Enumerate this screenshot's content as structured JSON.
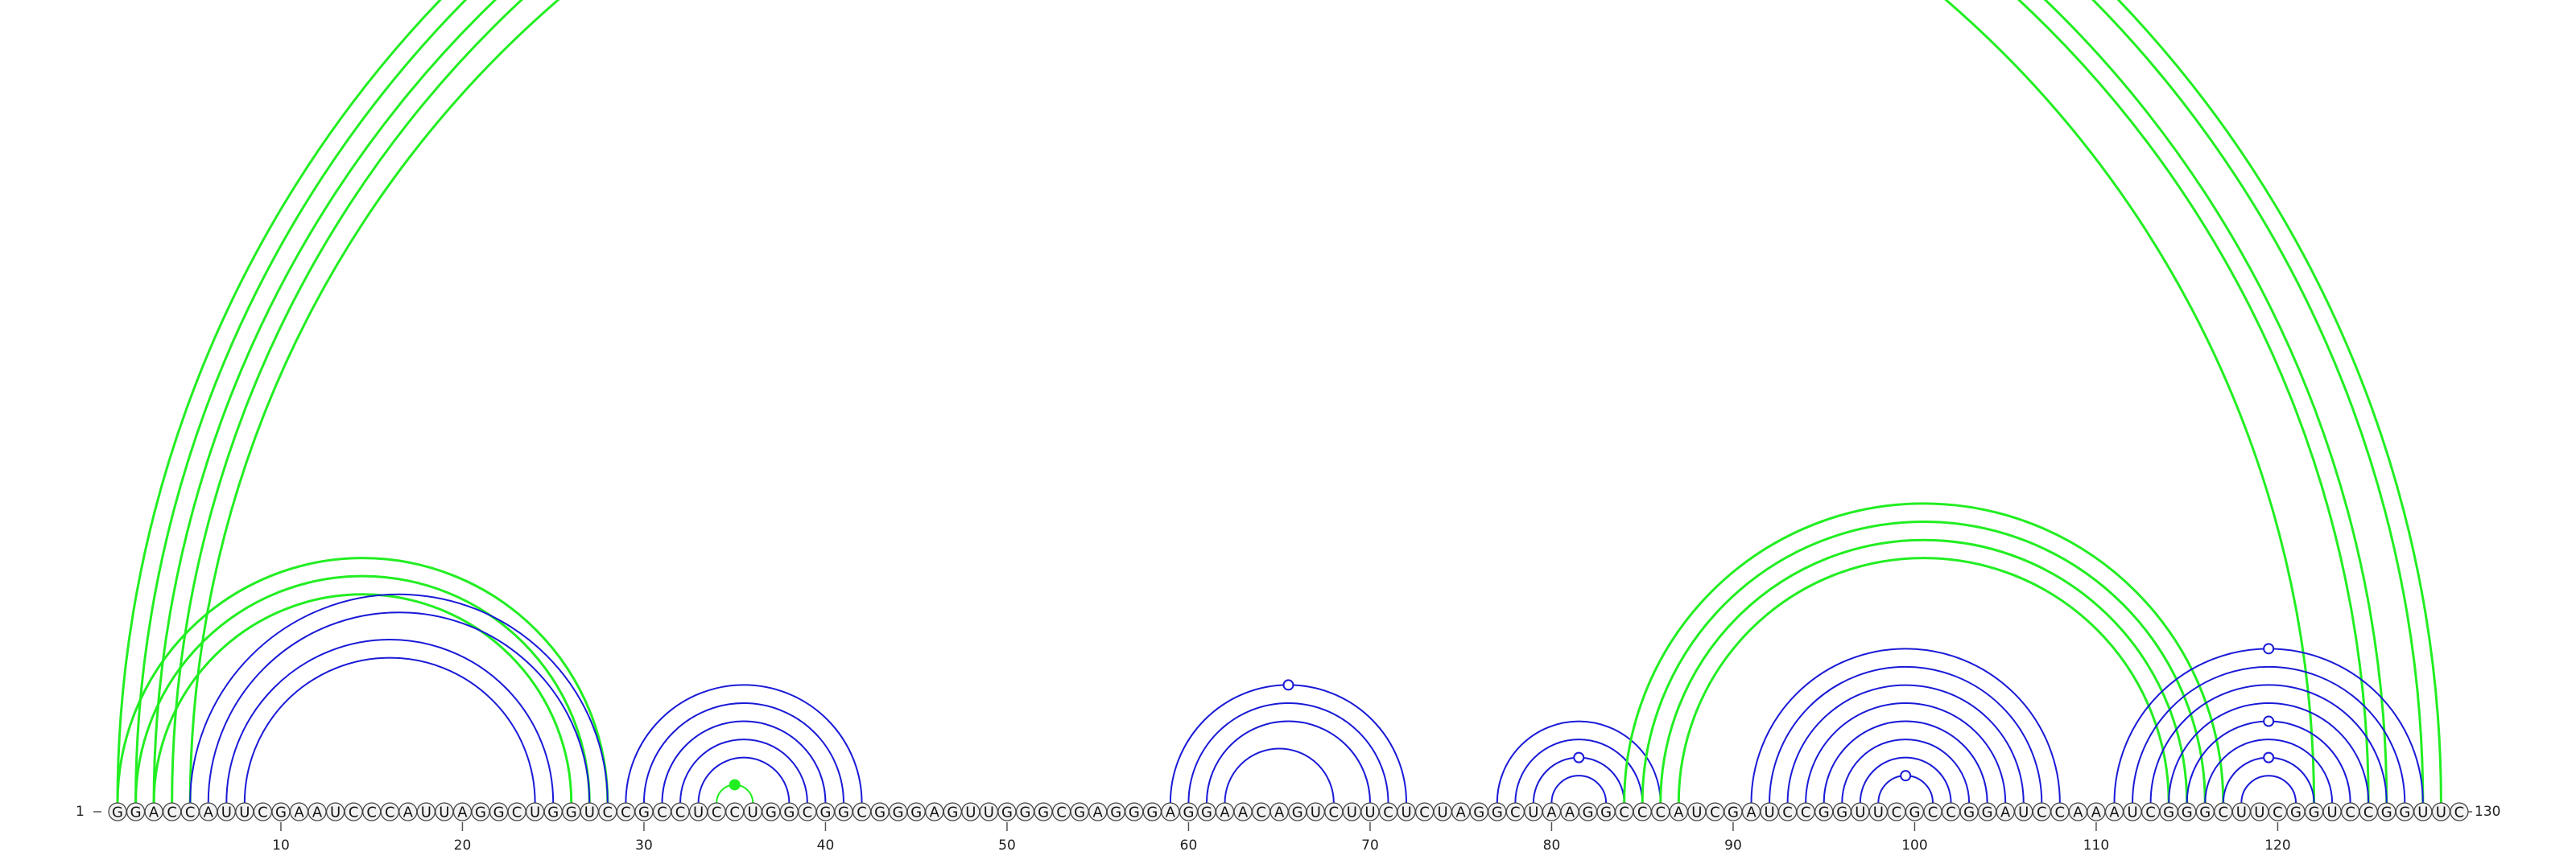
{
  "diagram": {
    "start_label": "1",
    "end_label": "130",
    "sequence": "GGACCAUUCGAAUCCCAUUAGGCUGGUCCGCCUCCUGGCGGCGGGAGUUGGGCGAGGGAGGAACAGUCUUCUCUAGGCUAAGGCCCAUCGAUCCGGUUCGCCGGAUCCAAAUCGGGCUUCGGUCCGGUUC",
    "tick_positions": [
      10,
      20,
      30,
      40,
      50,
      60,
      70,
      80,
      90,
      100,
      110,
      120
    ],
    "colors": {
      "green": "#22ee22",
      "blue": "#1a1ad8"
    },
    "arcs": [
      {
        "i": 1,
        "j": 129,
        "c": "green",
        "w": 3
      },
      {
        "i": 2,
        "j": 128,
        "c": "green",
        "w": 3
      },
      {
        "i": 3,
        "j": 126,
        "c": "green",
        "w": 3
      },
      {
        "i": 4,
        "j": 125,
        "c": "green",
        "w": 3
      },
      {
        "i": 5,
        "j": 122,
        "c": "green",
        "w": 3
      },
      {
        "i": 1,
        "j": 28,
        "c": "green",
        "w": 3
      },
      {
        "i": 2,
        "j": 27,
        "c": "green",
        "w": 3
      },
      {
        "i": 3,
        "j": 26,
        "c": "green",
        "w": 3
      },
      {
        "i": 5,
        "j": 28,
        "c": "blue",
        "w": 2
      },
      {
        "i": 6,
        "j": 27,
        "c": "blue",
        "w": 2
      },
      {
        "i": 7,
        "j": 25,
        "c": "blue",
        "w": 2
      },
      {
        "i": 8,
        "j": 24,
        "c": "blue",
        "w": 2
      },
      {
        "i": 29,
        "j": 42,
        "c": "blue",
        "w": 2
      },
      {
        "i": 30,
        "j": 41,
        "c": "blue",
        "w": 2
      },
      {
        "i": 31,
        "j": 40,
        "c": "blue",
        "w": 2
      },
      {
        "i": 32,
        "j": 39,
        "c": "blue",
        "w": 2
      },
      {
        "i": 33,
        "j": 38,
        "c": "blue",
        "w": 2
      },
      {
        "i": 34,
        "j": 36,
        "c": "green",
        "w": 2
      },
      {
        "i": 59,
        "j": 72,
        "c": "blue",
        "w": 2
      },
      {
        "i": 60,
        "j": 71,
        "c": "blue",
        "w": 2
      },
      {
        "i": 61,
        "j": 70,
        "c": "blue",
        "w": 2
      },
      {
        "i": 62,
        "j": 68,
        "c": "blue",
        "w": 2
      },
      {
        "i": 77,
        "j": 86,
        "c": "blue",
        "w": 2
      },
      {
        "i": 78,
        "j": 85,
        "c": "blue",
        "w": 2
      },
      {
        "i": 79,
        "j": 84,
        "c": "blue",
        "w": 2
      },
      {
        "i": 80,
        "j": 83,
        "c": "blue",
        "w": 2
      },
      {
        "i": 84,
        "j": 117,
        "c": "green",
        "w": 3
      },
      {
        "i": 85,
        "j": 116,
        "c": "green",
        "w": 3
      },
      {
        "i": 86,
        "j": 115,
        "c": "green",
        "w": 3
      },
      {
        "i": 87,
        "j": 114,
        "c": "green",
        "w": 3
      },
      {
        "i": 91,
        "j": 108,
        "c": "blue",
        "w": 2
      },
      {
        "i": 92,
        "j": 107,
        "c": "blue",
        "w": 2
      },
      {
        "i": 93,
        "j": 106,
        "c": "blue",
        "w": 2
      },
      {
        "i": 94,
        "j": 105,
        "c": "blue",
        "w": 2
      },
      {
        "i": 95,
        "j": 104,
        "c": "blue",
        "w": 2
      },
      {
        "i": 96,
        "j": 103,
        "c": "blue",
        "w": 2
      },
      {
        "i": 97,
        "j": 102,
        "c": "blue",
        "w": 2
      },
      {
        "i": 98,
        "j": 101,
        "c": "blue",
        "w": 2
      },
      {
        "i": 111,
        "j": 128,
        "c": "blue",
        "w": 2
      },
      {
        "i": 112,
        "j": 127,
        "c": "blue",
        "w": 2
      },
      {
        "i": 113,
        "j": 126,
        "c": "blue",
        "w": 2
      },
      {
        "i": 114,
        "j": 125,
        "c": "blue",
        "w": 2
      },
      {
        "i": 115,
        "j": 124,
        "c": "blue",
        "w": 2
      },
      {
        "i": 116,
        "j": 123,
        "c": "blue",
        "w": 2
      },
      {
        "i": 117,
        "j": 122,
        "c": "blue",
        "w": 2
      },
      {
        "i": 118,
        "j": 121,
        "c": "blue",
        "w": 2
      }
    ],
    "markers": [
      {
        "i": 1,
        "j": 129,
        "c": "green",
        "filled": false
      },
      {
        "i": 34,
        "j": 36,
        "c": "green",
        "filled": true
      },
      {
        "i": 59,
        "j": 72,
        "c": "blue",
        "filled": false
      },
      {
        "i": 79,
        "j": 84,
        "c": "blue",
        "filled": false
      },
      {
        "i": 98,
        "j": 101,
        "c": "blue",
        "filled": false
      },
      {
        "i": 111,
        "j": 128,
        "c": "blue",
        "filled": false
      },
      {
        "i": 115,
        "j": 124,
        "c": "blue",
        "filled": false
      },
      {
        "i": 117,
        "j": 122,
        "c": "blue",
        "filled": false
      }
    ]
  }
}
